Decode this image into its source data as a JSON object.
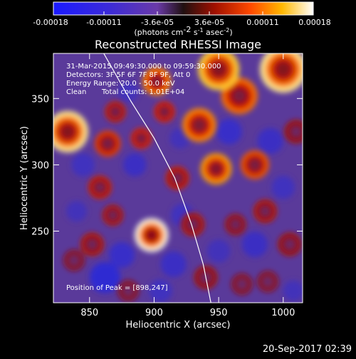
{
  "chart_data": {
    "type": "heatmap",
    "title": "Reconstructed RHESSI Image",
    "xlabel": "Heliocentric X (arcsec)",
    "ylabel": "Heliocentric Y (arcsec)",
    "xlim": [
      822,
      1015
    ],
    "ylim": [
      196,
      384
    ],
    "x_ticks": [
      850,
      900,
      950,
      1000
    ],
    "y_ticks": [
      250,
      300,
      350
    ],
    "colorbar": {
      "min": -0.00018,
      "max": 0.00018,
      "tick_values": [
        -0.00018,
        -0.00011,
        -3.6e-05,
        3.6e-05,
        0.00011,
        0.00018
      ],
      "tick_labels": [
        "-0.00018",
        "-0.00011",
        "-3.6e-05",
        "3.6e-05",
        "0.00011",
        "0.00018"
      ],
      "unit_label": "(photons cm",
      "unit_sup1": "-2",
      "unit_mid": " s",
      "unit_sup2": "-1",
      "unit_end": " asec",
      "unit_sup3": "-2",
      "unit_close": ")"
    },
    "sources": [
      {
        "x": 898,
        "y": 247,
        "r": 13,
        "value": 0.00018
      },
      {
        "x": 833,
        "y": 325,
        "r": 16,
        "value": 0.00017
      },
      {
        "x": 902,
        "y": 363,
        "r": 11,
        "value": 0.00013
      },
      {
        "x": 950,
        "y": 372,
        "r": 16,
        "value": 0.00016
      },
      {
        "x": 1000,
        "y": 372,
        "r": 18,
        "value": 0.00017
      },
      {
        "x": 966,
        "y": 352,
        "r": 14,
        "value": 0.00012
      },
      {
        "x": 935,
        "y": 330,
        "r": 13,
        "value": 0.00013
      },
      {
        "x": 948,
        "y": 297,
        "r": 12,
        "value": 0.00014
      },
      {
        "x": 978,
        "y": 300,
        "r": 11,
        "value": 0.00011
      },
      {
        "x": 864,
        "y": 316,
        "r": 10,
        "value": 0.0001
      },
      {
        "x": 858,
        "y": 283,
        "r": 9,
        "value": 8e-05
      },
      {
        "x": 870,
        "y": 340,
        "r": 8,
        "value": 8e-05
      },
      {
        "x": 852,
        "y": 240,
        "r": 9,
        "value": 7e-05
      },
      {
        "x": 918,
        "y": 290,
        "r": 9,
        "value": 8e-05
      },
      {
        "x": 930,
        "y": 255,
        "r": 9,
        "value": 7e-05
      },
      {
        "x": 963,
        "y": 255,
        "r": 8,
        "value": 6e-05
      },
      {
        "x": 986,
        "y": 265,
        "r": 9,
        "value": 7e-05
      },
      {
        "x": 1005,
        "y": 240,
        "r": 9,
        "value": 6e-05
      },
      {
        "x": 940,
        "y": 215,
        "r": 9,
        "value": 6e-05
      },
      {
        "x": 968,
        "y": 210,
        "r": 8,
        "value": 5e-05
      },
      {
        "x": 838,
        "y": 228,
        "r": 8,
        "value": 5e-05
      },
      {
        "x": 880,
        "y": 205,
        "r": 8,
        "value": 5e-05
      },
      {
        "x": 988,
        "y": 212,
        "r": 8,
        "value": 5e-05
      },
      {
        "x": 890,
        "y": 320,
        "r": 8,
        "value": 9e-05
      },
      {
        "x": 908,
        "y": 340,
        "r": 8,
        "value": 9e-05
      },
      {
        "x": 868,
        "y": 262,
        "r": 8,
        "value": 7e-05
      },
      {
        "x": 1010,
        "y": 325,
        "r": 9,
        "value": 6e-05
      }
    ],
    "negative_regions": [
      {
        "x": 862,
        "y": 215,
        "r": 12,
        "value": -0.00011
      },
      {
        "x": 875,
        "y": 232,
        "r": 10,
        "value": -9e-05
      },
      {
        "x": 915,
        "y": 225,
        "r": 10,
        "value": -8e-05
      },
      {
        "x": 958,
        "y": 325,
        "r": 10,
        "value": -9e-05
      },
      {
        "x": 990,
        "y": 318,
        "r": 10,
        "value": -8e-05
      },
      {
        "x": 845,
        "y": 300,
        "r": 9,
        "value": -7e-05
      },
      {
        "x": 885,
        "y": 300,
        "r": 9,
        "value": -8e-05
      },
      {
        "x": 922,
        "y": 262,
        "r": 9,
        "value": -7e-05
      },
      {
        "x": 978,
        "y": 240,
        "r": 10,
        "value": -8e-05
      },
      {
        "x": 1000,
        "y": 283,
        "r": 9,
        "value": -7e-05
      },
      {
        "x": 905,
        "y": 205,
        "r": 9,
        "value": -7e-05
      },
      {
        "x": 950,
        "y": 235,
        "r": 9,
        "value": -6e-05
      },
      {
        "x": 880,
        "y": 355,
        "r": 8,
        "value": -6e-05
      },
      {
        "x": 920,
        "y": 320,
        "r": 8,
        "value": -6e-05
      },
      {
        "x": 840,
        "y": 265,
        "r": 8,
        "value": -6e-05
      },
      {
        "x": 1008,
        "y": 205,
        "r": 8,
        "value": -6e-05
      }
    ],
    "limb_line": [
      [
        861,
        384
      ],
      [
        882,
        348
      ],
      [
        900,
        320
      ],
      [
        916,
        290
      ],
      [
        929,
        255
      ],
      [
        938,
        225
      ],
      [
        944,
        196
      ]
    ],
    "annotations": {
      "time": "31-Mar-2015 09:49:30.000 to 09:59:30.000",
      "detectors": "Detectors: 3F 5F 6F 7F 8F 9F, Att 0",
      "energy": "Energy Range: 20.0 - 50.0 keV",
      "method": "Clean",
      "counts": "Total counts: 1.01E+04",
      "peak": "Position of Peak = [898,247]"
    }
  },
  "timestamp": "20-Sep-2017 02:39"
}
